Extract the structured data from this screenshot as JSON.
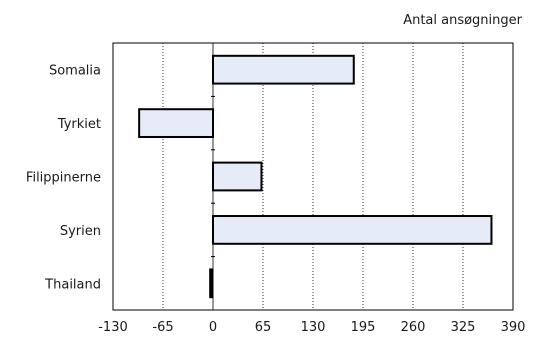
{
  "chart_data": {
    "type": "bar",
    "orientation": "horizontal",
    "categories": [
      "Somalia",
      "Tyrkiet",
      "Filippinerne",
      "Syrien",
      "Thailand"
    ],
    "values": [
      183,
      -96,
      63,
      362,
      -3
    ],
    "title": "",
    "xlabel": "Antal ansøgninger",
    "ylabel": "",
    "xlim": [
      -130,
      390
    ],
    "xticks": [
      -130,
      -65,
      0,
      65,
      130,
      195,
      260,
      325,
      390
    ],
    "grid": true,
    "legend": "none",
    "colors": {
      "bar_fill": "#e6ecf7",
      "bar_stroke": "#000000",
      "grid": "#000000",
      "frame": "#000000"
    }
  }
}
